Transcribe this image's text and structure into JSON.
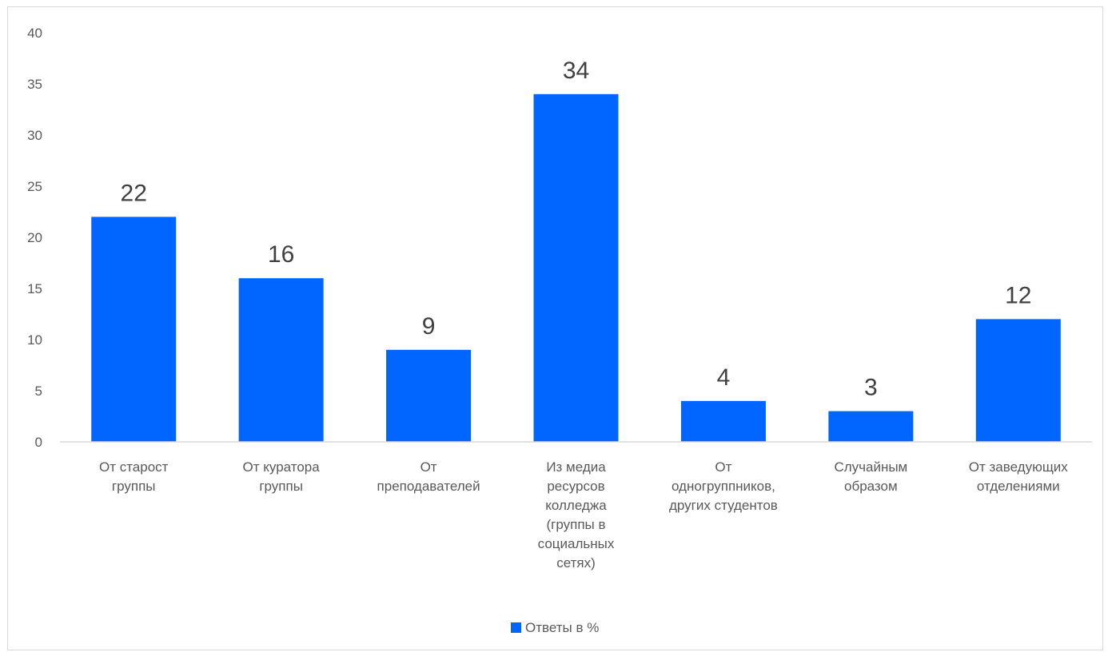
{
  "chart_data": {
    "type": "bar",
    "categories": [
      [
        "От старост",
        "группы"
      ],
      [
        "От куратора",
        "группы"
      ],
      [
        "От",
        "преподавателей"
      ],
      [
        "Из медиа",
        "ресурсов",
        "колледжа",
        "(группы в",
        "социальных",
        "сетях)"
      ],
      [
        "От",
        "одногруппников,",
        "других студентов"
      ],
      [
        "Случайным",
        "образом"
      ],
      [
        "От заведующих",
        "отделениями"
      ]
    ],
    "series": [
      {
        "name": "Ответы в %",
        "values": [
          22,
          16,
          9,
          34,
          4,
          3,
          12
        ]
      }
    ],
    "ylim": [
      0,
      40
    ],
    "yticks": [
      0,
      5,
      10,
      15,
      20,
      25,
      30,
      35,
      40
    ],
    "grid": false,
    "legend_position": "bottom",
    "colors": {
      "bar": "#0066ff",
      "axis": "#d9d9d9"
    }
  }
}
